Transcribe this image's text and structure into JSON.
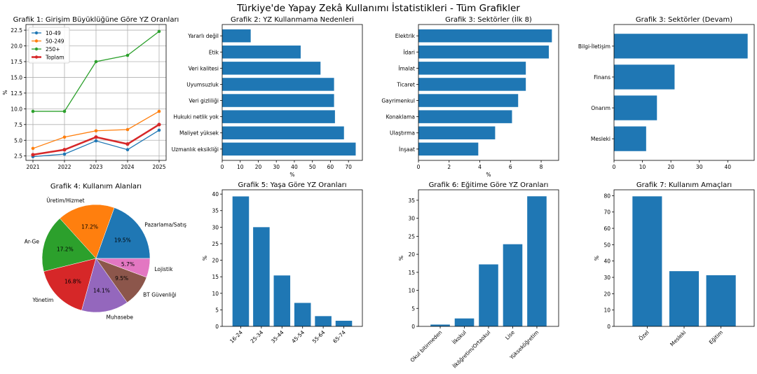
{
  "figure": {
    "title": "Türkiye'de Yapay Zekâ Kullanımı İstatistikleri - Tüm Grafikler"
  },
  "colors": {
    "bar": "#1f77b4",
    "pie": [
      "#1f77b4",
      "#ff7f0e",
      "#2ca02c",
      "#d62728",
      "#9467bd",
      "#8c564b",
      "#e377c2"
    ]
  },
  "chart_data": [
    {
      "id": "g1",
      "type": "line",
      "title": "Grafik 1: Girişim Büyüklüğüne Göre YZ Oranları",
      "xlabel": "",
      "ylabel": "%",
      "x": [
        "2021",
        "2022",
        "2023",
        "2024",
        "2025"
      ],
      "ylim": [
        1.8,
        23.4
      ],
      "yticks": [
        2.5,
        5.0,
        7.5,
        10.0,
        12.5,
        15.0,
        17.5,
        20.0,
        22.5
      ],
      "yticklabels": [
        "2.5",
        "5.0",
        "7.5",
        "10.0",
        "12.5",
        "15.0",
        "17.5",
        "20.0",
        "22.5"
      ],
      "grid": true,
      "legend": "top-left",
      "series": [
        {
          "name": "10-49",
          "color": "#1f77b4",
          "bold": false,
          "values": [
            2.4,
            2.8,
            4.9,
            3.5,
            6.6
          ]
        },
        {
          "name": "50-249",
          "color": "#ff7f0e",
          "bold": false,
          "values": [
            3.7,
            5.5,
            6.5,
            6.7,
            9.6
          ]
        },
        {
          "name": "250+",
          "color": "#2ca02c",
          "bold": false,
          "values": [
            9.6,
            9.6,
            17.5,
            18.5,
            22.3
          ]
        },
        {
          "name": "Toplam",
          "color": "#d62728",
          "bold": true,
          "values": [
            2.7,
            3.5,
            5.5,
            4.4,
            7.5
          ]
        }
      ]
    },
    {
      "id": "g2",
      "type": "barh",
      "title": "Grafik 2: YZ Kullanmama Nedenleri",
      "xlabel": "%",
      "ylabel": "",
      "categories": [
        "Uzmanlık eksikliği",
        "Maliyet yüksek",
        "Hukuki netlik yok",
        "Veri gizliliği",
        "Uyumsuzluk",
        "Veri kalitesi",
        "Etik",
        "Yararlı değil"
      ],
      "values": [
        74,
        67.5,
        62.5,
        62,
        62,
        54.5,
        43.5,
        15.8
      ],
      "xlim": [
        0,
        77.7
      ],
      "xticks": [
        0,
        10,
        20,
        30,
        40,
        50,
        60,
        70
      ],
      "xticklabels": [
        "0",
        "10",
        "20",
        "30",
        "40",
        "50",
        "60",
        "70"
      ]
    },
    {
      "id": "g3",
      "type": "barh",
      "title": "Grafik 3: Sektörler (İlk 8)",
      "xlabel": "%",
      "ylabel": "",
      "categories": [
        "İnşaat",
        "Ulaştırma",
        "Konaklama",
        "Gayrimenkul",
        "Ticaret",
        "İmalat",
        "İdari",
        "Elektrik"
      ],
      "values": [
        3.9,
        5.0,
        6.1,
        6.5,
        7.0,
        7.0,
        8.5,
        8.7
      ],
      "xlim": [
        0,
        9.14
      ],
      "xticks": [
        0,
        2,
        4,
        6,
        8
      ],
      "xticklabels": [
        "0",
        "2",
        "4",
        "6",
        "8"
      ]
    },
    {
      "id": "g3b",
      "type": "barh",
      "title": "Grafik 3: Sektörler (Devam)",
      "xlabel": "",
      "ylabel": "",
      "categories": [
        "Mesleki",
        "Onarım",
        "Finans",
        "Bilgi-İletişim"
      ],
      "values": [
        11.3,
        15.1,
        21.3,
        47.0
      ],
      "xlim": [
        0,
        49.3
      ],
      "xticks": [
        0,
        10,
        20,
        30,
        40
      ],
      "xticklabels": [
        "0",
        "10",
        "20",
        "30",
        "40"
      ]
    },
    {
      "id": "g4",
      "type": "pie",
      "title": "Grafik 4: Kullanım Alanları",
      "labels": [
        "Pazarlama/Satış",
        "Üretim/Hizmet",
        "Ar-Ge",
        "Yönetim",
        "Muhasebe",
        "BT Güvenliği",
        "Lojistik"
      ],
      "values": [
        19.5,
        17.2,
        17.2,
        16.8,
        14.1,
        9.5,
        5.7
      ],
      "autopct": [
        "19.5%",
        "17.2%",
        "17.2%",
        "16.8%",
        "14.1%",
        "9.5%",
        "5.7%"
      ]
    },
    {
      "id": "g5",
      "type": "bar",
      "title": "Grafik 5: Yaşa Göre YZ Oranları",
      "xlabel": "",
      "ylabel": "%",
      "categories": [
        "16-24",
        "25-34",
        "35-44",
        "45-54",
        "55-64",
        "65-74"
      ],
      "values": [
        39.3,
        30.0,
        15.4,
        7.1,
        3.1,
        1.7
      ],
      "ylim": [
        0,
        41.3
      ],
      "yticks": [
        0,
        5,
        10,
        15,
        20,
        25,
        30,
        35,
        40
      ],
      "yticklabels": [
        "0",
        "5",
        "10",
        "15",
        "20",
        "25",
        "30",
        "35",
        "40"
      ]
    },
    {
      "id": "g6",
      "type": "bar",
      "title": "Grafik 6: Eğitime Göre YZ Oranları",
      "xlabel": "",
      "ylabel": "%",
      "categories": [
        "Okul bitirmeden",
        "İlkokul",
        "İlköğretim/Ortaokul",
        "Lise",
        "Yükseköğretim"
      ],
      "values": [
        0.5,
        2.2,
        17.2,
        22.8,
        36.1
      ],
      "ylim": [
        0,
        37.9
      ],
      "yticks": [
        0,
        5,
        10,
        15,
        20,
        25,
        30,
        35
      ],
      "yticklabels": [
        "0",
        "5",
        "10",
        "15",
        "20",
        "25",
        "30",
        "35"
      ]
    },
    {
      "id": "g7",
      "type": "bar",
      "title": "Grafik 7: Kullanım Amaçları",
      "xlabel": "",
      "ylabel": "%",
      "categories": [
        "Özel",
        "Mesleki",
        "Eğitim"
      ],
      "values": [
        79.6,
        33.8,
        31.3
      ],
      "ylim": [
        0,
        83.6
      ],
      "yticks": [
        0,
        10,
        20,
        30,
        40,
        50,
        60,
        70,
        80
      ],
      "yticklabels": [
        "0",
        "10",
        "20",
        "30",
        "40",
        "50",
        "60",
        "70",
        "80"
      ]
    }
  ]
}
